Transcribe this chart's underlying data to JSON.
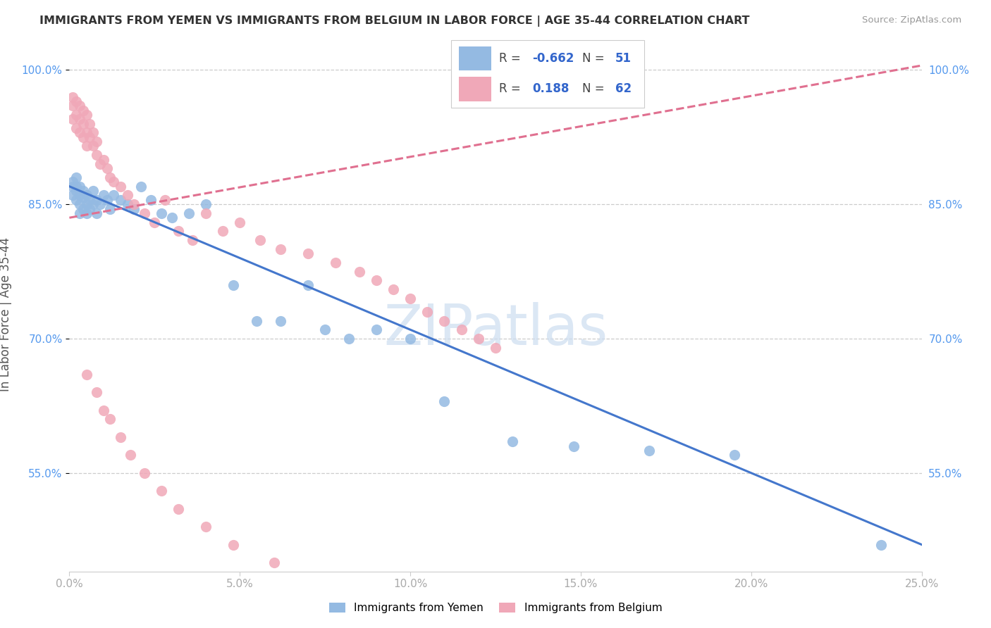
{
  "title": "IMMIGRANTS FROM YEMEN VS IMMIGRANTS FROM BELGIUM IN LABOR FORCE | AGE 35-44 CORRELATION CHART",
  "source": "Source: ZipAtlas.com",
  "ylabel": "In Labor Force | Age 35-44",
  "xlim": [
    0.0,
    0.25
  ],
  "ylim": [
    0.44,
    1.015
  ],
  "xtick_labels": [
    "0.0%",
    "5.0%",
    "10.0%",
    "15.0%",
    "20.0%",
    "25.0%"
  ],
  "xtick_vals": [
    0.0,
    0.05,
    0.1,
    0.15,
    0.2,
    0.25
  ],
  "ytick_labels": [
    "55.0%",
    "70.0%",
    "85.0%",
    "100.0%"
  ],
  "ytick_vals": [
    0.55,
    0.7,
    0.85,
    1.0
  ],
  "yemen_color": "#94bae2",
  "belgium_color": "#f0a8b8",
  "yemen_line_color": "#4477cc",
  "belgium_line_color": "#e07090",
  "legend_val_color": "#3366cc",
  "watermark": "ZIPatlas",
  "watermark_color": "#ccddf0",
  "grid_color": "#cccccc",
  "yemen_line_x0": 0.0,
  "yemen_line_y0": 0.87,
  "yemen_line_x1": 0.25,
  "yemen_line_y1": 0.47,
  "belgium_line_x0": 0.0,
  "belgium_line_y0": 0.835,
  "belgium_line_x1": 0.25,
  "belgium_line_y1": 1.005,
  "yemen_scatter_x": [
    0.001,
    0.001,
    0.001,
    0.002,
    0.002,
    0.002,
    0.002,
    0.003,
    0.003,
    0.003,
    0.003,
    0.004,
    0.004,
    0.004,
    0.005,
    0.005,
    0.005,
    0.006,
    0.006,
    0.007,
    0.007,
    0.008,
    0.008,
    0.009,
    0.01,
    0.011,
    0.012,
    0.013,
    0.015,
    0.017,
    0.019,
    0.021,
    0.024,
    0.027,
    0.03,
    0.035,
    0.04,
    0.048,
    0.055,
    0.062,
    0.07,
    0.075,
    0.082,
    0.09,
    0.1,
    0.11,
    0.13,
    0.148,
    0.17,
    0.195,
    0.238
  ],
  "yemen_scatter_y": [
    0.87,
    0.86,
    0.875,
    0.865,
    0.855,
    0.87,
    0.88,
    0.86,
    0.85,
    0.87,
    0.84,
    0.865,
    0.858,
    0.845,
    0.86,
    0.85,
    0.84,
    0.855,
    0.845,
    0.865,
    0.85,
    0.855,
    0.84,
    0.85,
    0.86,
    0.855,
    0.845,
    0.86,
    0.855,
    0.85,
    0.845,
    0.87,
    0.855,
    0.84,
    0.835,
    0.84,
    0.85,
    0.76,
    0.72,
    0.72,
    0.76,
    0.71,
    0.7,
    0.71,
    0.7,
    0.63,
    0.585,
    0.58,
    0.575,
    0.57,
    0.47
  ],
  "belgium_scatter_x": [
    0.001,
    0.001,
    0.001,
    0.002,
    0.002,
    0.002,
    0.003,
    0.003,
    0.003,
    0.004,
    0.004,
    0.004,
    0.005,
    0.005,
    0.005,
    0.006,
    0.006,
    0.007,
    0.007,
    0.008,
    0.008,
    0.009,
    0.01,
    0.011,
    0.012,
    0.013,
    0.015,
    0.017,
    0.019,
    0.022,
    0.025,
    0.028,
    0.032,
    0.036,
    0.04,
    0.045,
    0.05,
    0.056,
    0.062,
    0.07,
    0.078,
    0.085,
    0.09,
    0.095,
    0.1,
    0.105,
    0.11,
    0.115,
    0.12,
    0.125,
    0.005,
    0.008,
    0.01,
    0.012,
    0.015,
    0.018,
    0.022,
    0.027,
    0.032,
    0.04,
    0.048,
    0.06
  ],
  "belgium_scatter_y": [
    0.97,
    0.96,
    0.945,
    0.965,
    0.95,
    0.935,
    0.96,
    0.945,
    0.93,
    0.955,
    0.94,
    0.925,
    0.95,
    0.93,
    0.915,
    0.94,
    0.925,
    0.93,
    0.915,
    0.92,
    0.905,
    0.895,
    0.9,
    0.89,
    0.88,
    0.875,
    0.87,
    0.86,
    0.85,
    0.84,
    0.83,
    0.855,
    0.82,
    0.81,
    0.84,
    0.82,
    0.83,
    0.81,
    0.8,
    0.795,
    0.785,
    0.775,
    0.765,
    0.755,
    0.745,
    0.73,
    0.72,
    0.71,
    0.7,
    0.69,
    0.66,
    0.64,
    0.62,
    0.61,
    0.59,
    0.57,
    0.55,
    0.53,
    0.51,
    0.49,
    0.47,
    0.45
  ]
}
